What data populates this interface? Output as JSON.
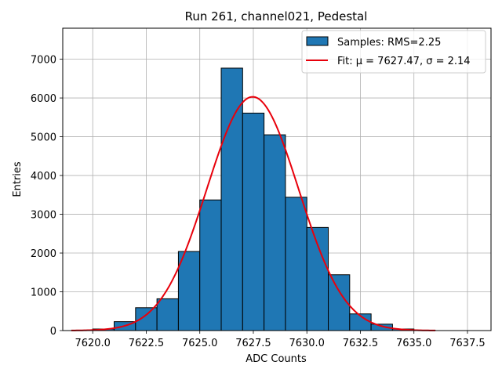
{
  "chart_data": {
    "type": "bar",
    "title": "Run 261, channel021, Pedestal",
    "xlabel": "ADC Counts",
    "ylabel": "Entries",
    "xlim": [
      7618.6,
      7638.6
    ],
    "ylim": [
      0,
      7800
    ],
    "xticks": [
      7620.0,
      7622.5,
      7625.0,
      7627.5,
      7630.0,
      7632.5,
      7635.0,
      7637.5
    ],
    "xtick_labels": [
      "7620.0",
      "7622.5",
      "7625.0",
      "7627.5",
      "7630.0",
      "7632.5",
      "7635.0",
      "7637.5"
    ],
    "yticks": [
      0,
      1000,
      2000,
      3000,
      4000,
      5000,
      6000,
      7000
    ],
    "ytick_labels": [
      "0",
      "1000",
      "2000",
      "3000",
      "4000",
      "5000",
      "6000",
      "7000"
    ],
    "grid": true,
    "legend_position": "upper-right",
    "series": [
      {
        "name": "Samples: RMS=2.25",
        "kind": "histogram",
        "color": "#1f77b4",
        "edge_color": "#000000",
        "bin_edges": [
          7620.0,
          7621.0,
          7622.0,
          7623.0,
          7624.0,
          7625.0,
          7626.0,
          7627.0,
          7628.0,
          7629.0,
          7630.0,
          7631.0,
          7632.0,
          7633.0,
          7634.0,
          7635.0,
          7636.0
        ],
        "values": [
          40,
          230,
          590,
          820,
          2040,
          3370,
          6770,
          5610,
          5050,
          3440,
          2660,
          1440,
          430,
          165,
          40,
          5
        ]
      },
      {
        "name": "Fit: μ = 7627.47, σ = 2.14",
        "kind": "gaussian",
        "color": "#e8000b",
        "mu": 7627.47,
        "sigma": 2.14,
        "amplitude": 6030,
        "x_range": [
          7619.0,
          7636.0
        ]
      }
    ]
  }
}
